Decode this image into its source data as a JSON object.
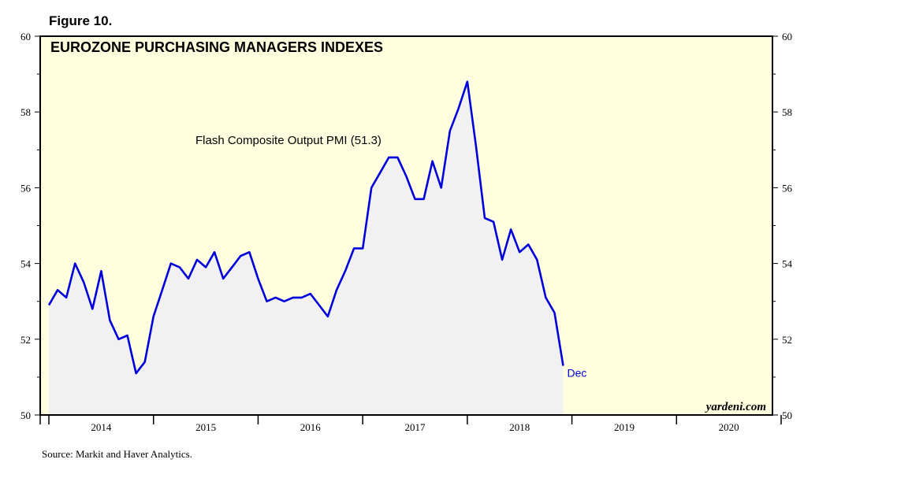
{
  "figure_label": "Figure 10.",
  "source_note": "Source: Markit and Haver Analytics.",
  "brand": "yardeni.com",
  "colors": {
    "plot_background": "#ffffe0",
    "series_line": "#0000dd",
    "series_fill": "#f1f1f1"
  },
  "chart_data": {
    "type": "area",
    "title": "EUROZONE PURCHASING MANAGERS INDEXES",
    "annotation": "Flash Composite Output PMI (51.3)",
    "end_label": "Dec",
    "ylim": [
      50,
      60
    ],
    "yticks": [
      50,
      52,
      54,
      56,
      58,
      60
    ],
    "xlim": [
      2013.917,
      2020.917
    ],
    "x_tick_labels": [
      "2014",
      "2015",
      "2016",
      "2017",
      "2018",
      "2019",
      "2020"
    ],
    "grid": false,
    "series": [
      {
        "values": [
          52.9,
          53.3,
          53.1,
          54.0,
          53.5,
          52.8,
          53.8,
          52.5,
          52.0,
          52.1,
          51.1,
          51.4,
          52.6,
          53.3,
          54.0,
          53.9,
          53.6,
          54.1,
          53.9,
          54.3,
          53.6,
          53.9,
          54.2,
          54.3,
          53.6,
          53.0,
          53.1,
          53.0,
          53.1,
          53.1,
          53.2,
          52.9,
          52.6,
          53.3,
          53.8,
          54.4,
          54.4,
          56.0,
          56.4,
          56.8,
          56.8,
          56.3,
          55.7,
          55.7,
          56.7,
          56.0,
          57.5,
          58.1,
          58.8,
          57.1,
          55.2,
          55.1,
          54.1,
          54.9,
          54.3,
          54.5,
          54.1,
          53.1,
          52.7,
          51.3
        ]
      }
    ]
  }
}
